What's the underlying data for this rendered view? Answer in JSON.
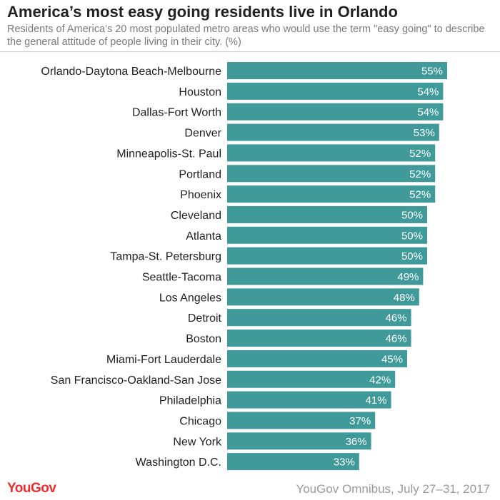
{
  "title": "America’s most easy going residents live in Orlando",
  "subtitle": "Residents of America’s 20 most populated metro areas who would use the term \"easy going\" to describe the general attitude of people living in their city. (%)",
  "logo": "YouGov",
  "source": "YouGov Omnibus, July 27–31, 2017",
  "colors": {
    "bar": "#409a9a",
    "label": "#222222",
    "value": "#ffffff"
  },
  "chart_data": {
    "type": "bar",
    "orientation": "horizontal",
    "value_suffix": "%",
    "categories": [
      "Orlando-Daytona Beach-Melbourne",
      "Houston",
      "Dallas-Fort Worth",
      "Denver",
      "Minneapolis-St. Paul",
      "Portland",
      "Phoenix",
      "Cleveland",
      "Atlanta",
      "Tampa-St. Petersburg",
      "Seattle-Tacoma",
      "Los Angeles",
      "Detroit",
      "Boston",
      "Miami-Fort Lauderdale",
      "San Francisco-Oakland-San Jose",
      "Philadelphia",
      "Chicago",
      "New York",
      "Washington D.C."
    ],
    "values": [
      55,
      54,
      54,
      53,
      52,
      52,
      52,
      50,
      50,
      50,
      49,
      48,
      46,
      46,
      45,
      42,
      41,
      37,
      36,
      33
    ],
    "xlim": [
      0,
      60
    ]
  }
}
